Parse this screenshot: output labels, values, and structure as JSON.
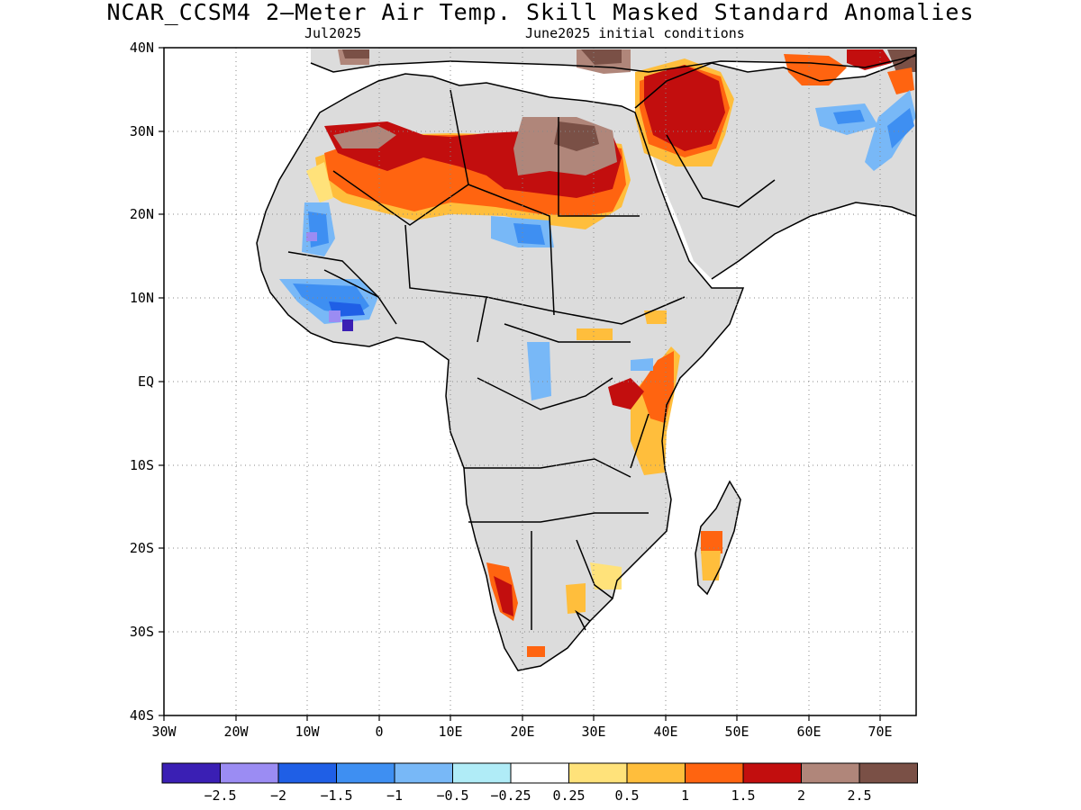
{
  "title": "NCAR_CCSM4 2—Meter Air Temp. Skill Masked Standard Anomalies",
  "subtitle_left": "Jul2025",
  "subtitle_right": "June2025 initial conditions",
  "axes": {
    "lon_labels": [
      "30W",
      "20W",
      "10W",
      "0",
      "10E",
      "20E",
      "30E",
      "40E",
      "50E",
      "60E",
      "70E"
    ],
    "lat_labels": [
      "40N",
      "30N",
      "20N",
      "10N",
      "EQ",
      "10S",
      "20S",
      "30S",
      "40S"
    ],
    "lon_range": [
      -30,
      75
    ],
    "lat_range": [
      -40,
      40
    ],
    "grid": "dotted"
  },
  "colorbar": {
    "labels": [
      "−2.5",
      "−2",
      "−1.5",
      "−1",
      "−0.5",
      "−0.25",
      "0.25",
      "0.5",
      "1",
      "1.5",
      "2",
      "2.5"
    ],
    "colors": [
      "#3a1fb4",
      "#9b8cf3",
      "#1f5fe6",
      "#3e8ff2",
      "#78b8f7",
      "#b0ecf7",
      "#ffffff",
      "#ffe27a",
      "#ffbe3c",
      "#ff6410",
      "#c20e0e",
      "#b0867a",
      "#7a5046"
    ]
  },
  "legend": {
    "land_mask_color": "#dcdcdc",
    "ocean_color": "#ffffff"
  }
}
